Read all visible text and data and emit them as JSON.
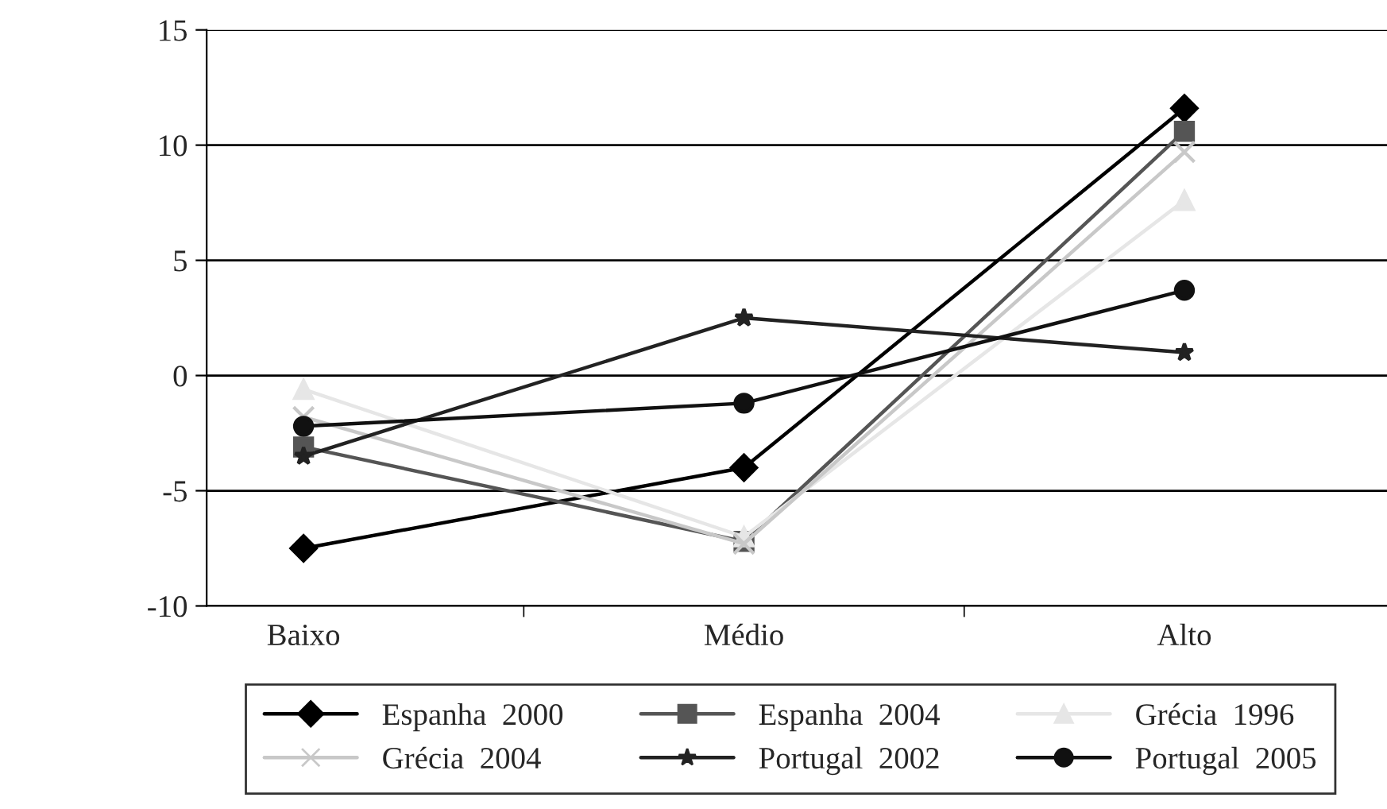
{
  "chart_data": {
    "type": "line",
    "categories": [
      "Baixo",
      "Médio",
      "Alto"
    ],
    "series": [
      {
        "name": "Espanha  2000",
        "color": "#000000",
        "marker": "diamond",
        "values": [
          -7.5,
          -4.0,
          11.6
        ]
      },
      {
        "name": "Espanha  2004",
        "color": "#555555",
        "marker": "square",
        "values": [
          -3.1,
          -7.2,
          10.6
        ]
      },
      {
        "name": "Grécia  1996",
        "color": "#e6e6e6",
        "marker": "triangle",
        "values": [
          -0.6,
          -7.0,
          7.6
        ]
      },
      {
        "name": "Grécia  2004",
        "color": "#c8c8c8",
        "marker": "cross",
        "values": [
          -1.8,
          -7.3,
          9.7
        ]
      },
      {
        "name": "Portugal  2002",
        "color": "#222222",
        "marker": "star",
        "values": [
          -3.5,
          2.5,
          1.0
        ]
      },
      {
        "name": "Portugal  2005",
        "color": "#111111",
        "marker": "circle",
        "values": [
          -2.2,
          -1.2,
          3.7
        ]
      }
    ],
    "ylim": [
      -10,
      15
    ],
    "yticks": [
      -10,
      -5,
      0,
      5,
      10,
      15
    ],
    "grid": "y",
    "legend": "bottom"
  }
}
